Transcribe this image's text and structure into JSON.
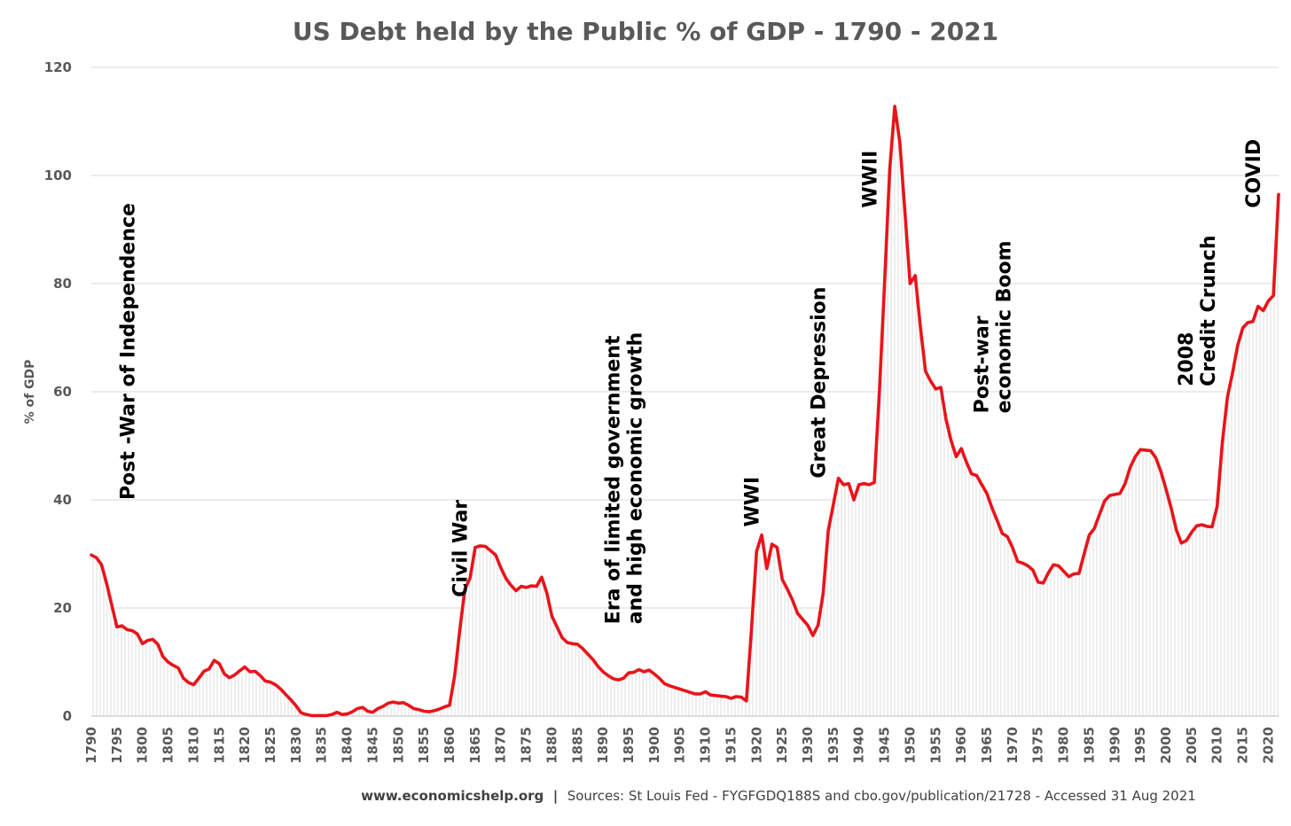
{
  "chart_data": {
    "type": "line",
    "title": "US Debt held by the Public % of GDP - 1790 - 2021",
    "ylabel": "% of GDP",
    "xlabel": "",
    "ylim": [
      0,
      120
    ],
    "yticks": [
      0,
      20,
      40,
      60,
      80,
      100,
      120
    ],
    "xlim": [
      1790,
      2021
    ],
    "xticks": [
      1790,
      1795,
      1800,
      1805,
      1810,
      1815,
      1820,
      1825,
      1830,
      1835,
      1840,
      1845,
      1850,
      1855,
      1860,
      1865,
      1870,
      1875,
      1880,
      1885,
      1890,
      1895,
      1900,
      1905,
      1910,
      1915,
      1920,
      1925,
      1930,
      1935,
      1940,
      1945,
      1950,
      1955,
      1960,
      1965,
      1970,
      1975,
      1980,
      1985,
      1990,
      1995,
      2000,
      2005,
      2010,
      2015,
      2020
    ],
    "grid": "horizontal",
    "line_color": "#e8141b",
    "fill": "light hatched area under line",
    "series": [
      {
        "values": [
          [
            1790,
            29.8
          ],
          [
            1791,
            29.3
          ],
          [
            1792,
            28
          ],
          [
            1793,
            24.5
          ],
          [
            1794,
            20.5
          ],
          [
            1795,
            16.5
          ],
          [
            1796,
            16.7
          ],
          [
            1797,
            16
          ],
          [
            1798,
            15.8
          ],
          [
            1799,
            15.2
          ],
          [
            1800,
            13.4
          ],
          [
            1801,
            14
          ],
          [
            1802,
            14.2
          ],
          [
            1803,
            13.3
          ],
          [
            1804,
            11
          ],
          [
            1805,
            10
          ],
          [
            1806,
            9.4
          ],
          [
            1807,
            8.9
          ],
          [
            1808,
            7
          ],
          [
            1809,
            6.2
          ],
          [
            1810,
            5.8
          ],
          [
            1811,
            7
          ],
          [
            1812,
            8.3
          ],
          [
            1813,
            8.7
          ],
          [
            1814,
            10.3
          ],
          [
            1815,
            9.7
          ],
          [
            1816,
            7.8
          ],
          [
            1817,
            7.1
          ],
          [
            1818,
            7.6
          ],
          [
            1819,
            8.4
          ],
          [
            1820,
            9.1
          ],
          [
            1821,
            8.2
          ],
          [
            1822,
            8.3
          ],
          [
            1823,
            7.5
          ],
          [
            1824,
            6.5
          ],
          [
            1825,
            6.3
          ],
          [
            1826,
            5.8
          ],
          [
            1827,
            5
          ],
          [
            1828,
            4
          ],
          [
            1829,
            3
          ],
          [
            1830,
            1.9
          ],
          [
            1831,
            0.6
          ],
          [
            1832,
            0.3
          ],
          [
            1833,
            0.1
          ],
          [
            1834,
            0.1
          ],
          [
            1835,
            0.1
          ],
          [
            1836,
            0.1
          ],
          [
            1837,
            0.3
          ],
          [
            1838,
            0.7
          ],
          [
            1839,
            0.3
          ],
          [
            1840,
            0.4
          ],
          [
            1841,
            0.8
          ],
          [
            1842,
            1.4
          ],
          [
            1843,
            1.6
          ],
          [
            1844,
            0.9
          ],
          [
            1845,
            0.7
          ],
          [
            1846,
            1.4
          ],
          [
            1847,
            1.8
          ],
          [
            1848,
            2.4
          ],
          [
            1849,
            2.6
          ],
          [
            1850,
            2.4
          ],
          [
            1851,
            2.5
          ],
          [
            1852,
            2
          ],
          [
            1853,
            1.4
          ],
          [
            1854,
            1.2
          ],
          [
            1855,
            0.9
          ],
          [
            1856,
            0.8
          ],
          [
            1857,
            1
          ],
          [
            1858,
            1.3
          ],
          [
            1859,
            1.7
          ],
          [
            1860,
            2
          ],
          [
            1861,
            7.5
          ],
          [
            1862,
            16
          ],
          [
            1863,
            23.5
          ],
          [
            1864,
            25.5
          ],
          [
            1865,
            31.2
          ],
          [
            1866,
            31.5
          ],
          [
            1867,
            31.4
          ],
          [
            1868,
            30.6
          ],
          [
            1869,
            29.8
          ],
          [
            1870,
            27.5
          ],
          [
            1871,
            25.5
          ],
          [
            1872,
            24.2
          ],
          [
            1873,
            23.2
          ],
          [
            1874,
            24
          ],
          [
            1875,
            23.8
          ],
          [
            1876,
            24.1
          ],
          [
            1877,
            24
          ],
          [
            1878,
            25.7
          ],
          [
            1879,
            22.8
          ],
          [
            1880,
            18.5
          ],
          [
            1881,
            16.5
          ],
          [
            1882,
            14.5
          ],
          [
            1883,
            13.6
          ],
          [
            1884,
            13.4
          ],
          [
            1885,
            13.3
          ],
          [
            1886,
            12.5
          ],
          [
            1887,
            11.5
          ],
          [
            1888,
            10.5
          ],
          [
            1889,
            9.2
          ],
          [
            1890,
            8.2
          ],
          [
            1891,
            7.5
          ],
          [
            1892,
            6.9
          ],
          [
            1893,
            6.7
          ],
          [
            1894,
            7
          ],
          [
            1895,
            8
          ],
          [
            1896,
            8.1
          ],
          [
            1897,
            8.6
          ],
          [
            1898,
            8.2
          ],
          [
            1899,
            8.5
          ],
          [
            1900,
            7.8
          ],
          [
            1901,
            7
          ],
          [
            1902,
            6
          ],
          [
            1903,
            5.6
          ],
          [
            1904,
            5.3
          ],
          [
            1905,
            5
          ],
          [
            1906,
            4.7
          ],
          [
            1907,
            4.4
          ],
          [
            1908,
            4.1
          ],
          [
            1909,
            4.1
          ],
          [
            1910,
            4.5
          ],
          [
            1911,
            3.9
          ],
          [
            1912,
            3.8
          ],
          [
            1913,
            3.7
          ],
          [
            1914,
            3.6
          ],
          [
            1915,
            3.3
          ],
          [
            1916,
            3.6
          ],
          [
            1917,
            3.5
          ],
          [
            1918,
            2.8
          ],
          [
            1919,
            16
          ],
          [
            1920,
            30.5
          ],
          [
            1921,
            33.5
          ],
          [
            1922,
            27.3
          ],
          [
            1923,
            31.8
          ],
          [
            1924,
            31.2
          ],
          [
            1925,
            25.3
          ],
          [
            1926,
            23.5
          ],
          [
            1927,
            21.5
          ],
          [
            1928,
            19
          ],
          [
            1929,
            17.9
          ],
          [
            1930,
            16.8
          ],
          [
            1931,
            14.9
          ],
          [
            1932,
            16.8
          ],
          [
            1933,
            22.6
          ],
          [
            1934,
            34.3
          ],
          [
            1935,
            39.2
          ],
          [
            1936,
            44
          ],
          [
            1937,
            42.8
          ],
          [
            1938,
            43
          ],
          [
            1939,
            40
          ],
          [
            1940,
            42.8
          ],
          [
            1941,
            43
          ],
          [
            1942,
            42.8
          ],
          [
            1943,
            43.2
          ],
          [
            1944,
            60
          ],
          [
            1945,
            80
          ],
          [
            1946,
            101
          ],
          [
            1947,
            112.8
          ],
          [
            1948,
            106
          ],
          [
            1949,
            93
          ],
          [
            1950,
            80
          ],
          [
            1951,
            81.5
          ],
          [
            1952,
            72
          ],
          [
            1953,
            63.8
          ],
          [
            1954,
            62
          ],
          [
            1955,
            60.5
          ],
          [
            1956,
            60.8
          ],
          [
            1957,
            55
          ],
          [
            1958,
            51
          ],
          [
            1959,
            48
          ],
          [
            1960,
            49.5
          ],
          [
            1961,
            47
          ],
          [
            1962,
            44.8
          ],
          [
            1963,
            44.5
          ],
          [
            1964,
            42.8
          ],
          [
            1965,
            41.2
          ],
          [
            1966,
            38.5
          ],
          [
            1967,
            36.2
          ],
          [
            1968,
            33.8
          ],
          [
            1969,
            33.2
          ],
          [
            1970,
            31.2
          ],
          [
            1971,
            28.6
          ],
          [
            1972,
            28.3
          ],
          [
            1973,
            27.8
          ],
          [
            1974,
            27
          ],
          [
            1975,
            24.8
          ],
          [
            1976,
            24.6
          ],
          [
            1977,
            26.5
          ],
          [
            1978,
            28
          ],
          [
            1979,
            27.8
          ],
          [
            1980,
            26.8
          ],
          [
            1981,
            25.8
          ],
          [
            1982,
            26.3
          ],
          [
            1983,
            26.4
          ],
          [
            1984,
            30
          ],
          [
            1985,
            33.5
          ],
          [
            1986,
            34.7
          ],
          [
            1987,
            37.3
          ],
          [
            1988,
            39.8
          ],
          [
            1989,
            40.8
          ],
          [
            1990,
            41
          ],
          [
            1991,
            41.2
          ],
          [
            1992,
            43
          ],
          [
            1993,
            46
          ],
          [
            1994,
            48
          ],
          [
            1995,
            49.3
          ],
          [
            1996,
            49.2
          ],
          [
            1997,
            49.1
          ],
          [
            1998,
            47.8
          ],
          [
            1999,
            45.2
          ],
          [
            2000,
            42
          ],
          [
            2001,
            38.5
          ],
          [
            2002,
            34.5
          ],
          [
            2003,
            32
          ],
          [
            2004,
            32.5
          ],
          [
            2005,
            34
          ],
          [
            2006,
            35.2
          ],
          [
            2007,
            35.4
          ],
          [
            2008,
            35.1
          ],
          [
            2009,
            35
          ],
          [
            2010,
            38.8
          ],
          [
            2011,
            50.5
          ],
          [
            2012,
            59
          ],
          [
            2013,
            63.5
          ],
          [
            2014,
            68.5
          ],
          [
            2015,
            71.8
          ],
          [
            2016,
            72.8
          ],
          [
            2017,
            73
          ],
          [
            2018,
            75.8
          ],
          [
            2019,
            75
          ],
          [
            2020,
            76.8
          ],
          [
            2021,
            77.8
          ],
          [
            2022,
            96.5
          ]
        ]
      }
    ],
    "annotations": [
      {
        "lines": [
          "Post -War of Independence"
        ],
        "year": 1797,
        "value": 40
      },
      {
        "lines": [
          "Civil War"
        ],
        "year": 1862,
        "value": 22
      },
      {
        "lines": [
          "Era of limited government",
          "and high economic growth"
        ],
        "year": 1894,
        "value": 17
      },
      {
        "lines": [
          "WWI"
        ],
        "year": 1919,
        "value": 35
      },
      {
        "lines": [
          "Great Depression"
        ],
        "year": 1932,
        "value": 44
      },
      {
        "lines": [
          "WWII"
        ],
        "year": 1942,
        "value": 94
      },
      {
        "lines": [
          "Post-war",
          "economic Boom"
        ],
        "year": 1966,
        "value": 56
      },
      {
        "lines": [
          "2008",
          "Credit Crunch"
        ],
        "year": 2006,
        "value": 61
      },
      {
        "lines": [
          "COVID"
        ],
        "year": 2017,
        "value": 94
      }
    ]
  },
  "footer": {
    "site": "www.economicshelp.org",
    "separator": "|",
    "sources": "Sources: St Louis Fed - FYGFGDQ188S and cbo.gov/publication/21728 - Accessed 31 Aug 2021"
  }
}
